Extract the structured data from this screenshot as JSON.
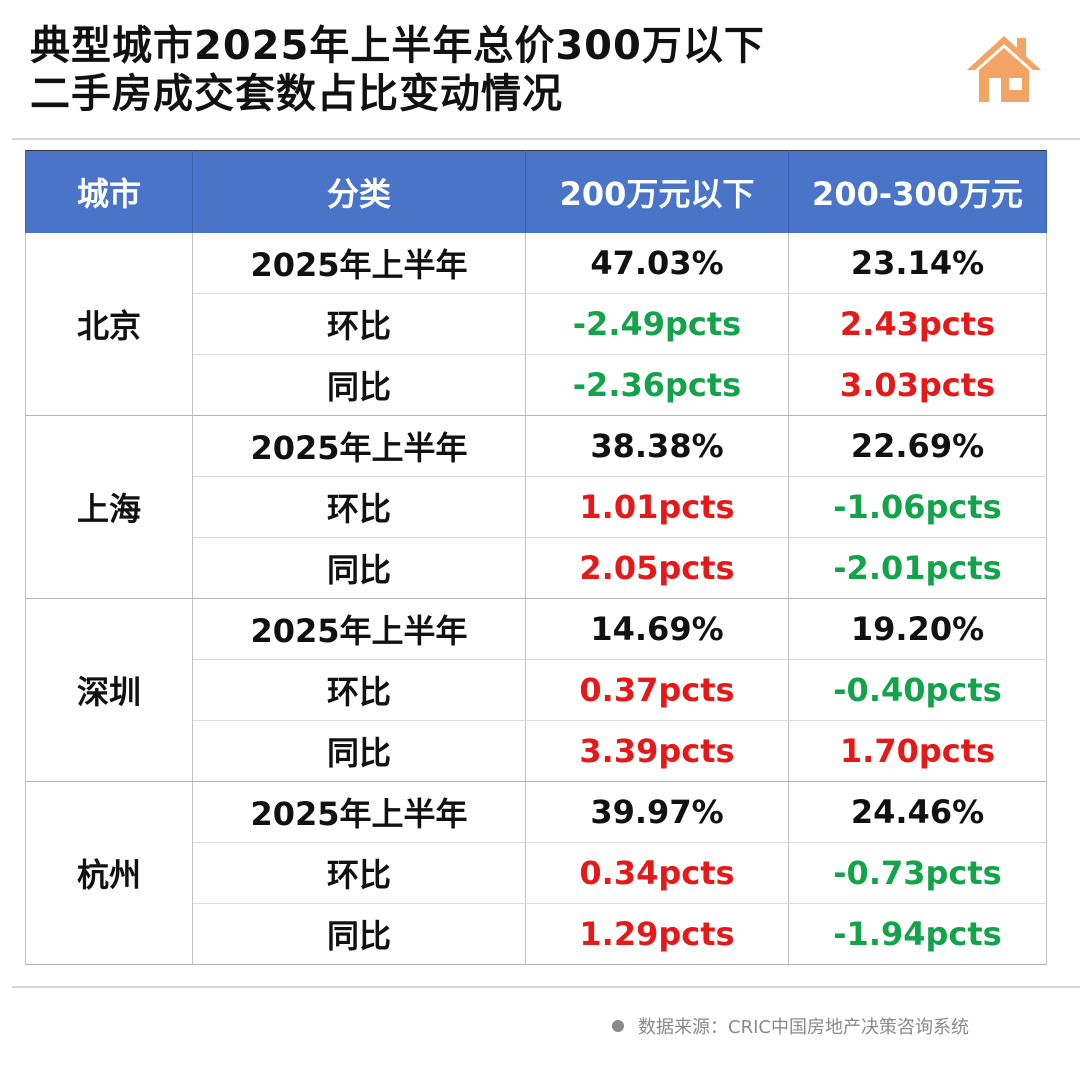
{
  "title": {
    "line1": "典型城市2025年上半年总价300万以下",
    "line2": "二手房成交套数占比变动情况"
  },
  "icons": {
    "logo": "house-icon",
    "logo_color": "#f2a464"
  },
  "colors": {
    "header_bg": "#4a74c8",
    "positive": "#e41a1a",
    "negative": "#13a34a"
  },
  "table": {
    "headers": [
      "城市",
      "分类",
      "200万元以下",
      "200-300万元"
    ],
    "groups": [
      {
        "city": "北京",
        "rows": [
          {
            "label": "2025年上半年",
            "c1": "47.03%",
            "c1_sign": "neutral",
            "c2": "23.14%",
            "c2_sign": "neutral"
          },
          {
            "label": "环比",
            "c1": "-2.49pcts",
            "c1_sign": "neg",
            "c2": "2.43pcts",
            "c2_sign": "pos"
          },
          {
            "label": "同比",
            "c1": "-2.36pcts",
            "c1_sign": "neg",
            "c2": "3.03pcts",
            "c2_sign": "pos"
          }
        ]
      },
      {
        "city": "上海",
        "rows": [
          {
            "label": "2025年上半年",
            "c1": "38.38%",
            "c1_sign": "neutral",
            "c2": "22.69%",
            "c2_sign": "neutral"
          },
          {
            "label": "环比",
            "c1": "1.01pcts",
            "c1_sign": "pos",
            "c2": "-1.06pcts",
            "c2_sign": "neg"
          },
          {
            "label": "同比",
            "c1": "2.05pcts",
            "c1_sign": "pos",
            "c2": "-2.01pcts",
            "c2_sign": "neg"
          }
        ]
      },
      {
        "city": "深圳",
        "rows": [
          {
            "label": "2025年上半年",
            "c1": "14.69%",
            "c1_sign": "neutral",
            "c2": "19.20%",
            "c2_sign": "neutral"
          },
          {
            "label": "环比",
            "c1": "0.37pcts",
            "c1_sign": "pos",
            "c2": "-0.40pcts",
            "c2_sign": "neg"
          },
          {
            "label": "同比",
            "c1": "3.39pcts",
            "c1_sign": "pos",
            "c2": "1.70pcts",
            "c2_sign": "pos"
          }
        ]
      },
      {
        "city": "杭州",
        "rows": [
          {
            "label": "2025年上半年",
            "c1": "39.97%",
            "c1_sign": "neutral",
            "c2": "24.46%",
            "c2_sign": "neutral"
          },
          {
            "label": "环比",
            "c1": "0.34pcts",
            "c1_sign": "pos",
            "c2": "-0.73pcts",
            "c2_sign": "neg"
          },
          {
            "label": "同比",
            "c1": "1.29pcts",
            "c1_sign": "pos",
            "c2": "-1.94pcts",
            "c2_sign": "neg"
          }
        ]
      }
    ]
  },
  "source": {
    "text": "数据来源：CRIC中国房地产决策咨询系统"
  }
}
